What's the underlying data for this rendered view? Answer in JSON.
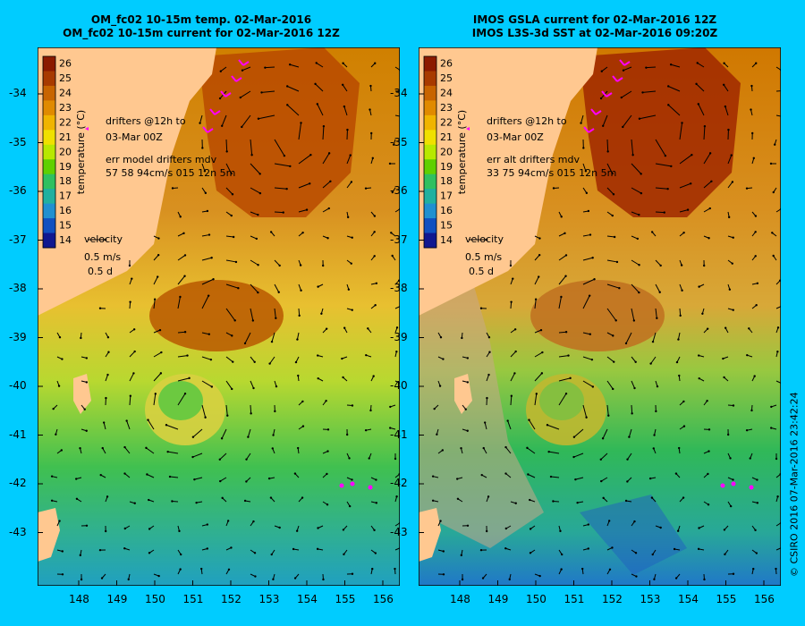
{
  "panels": [
    {
      "title1": "OM_fc02 10-15m temp. 02-Mar-2016",
      "title2": "OM_fc02 10-15m current for 02-Mar-2016 12Z",
      "drifters_l1": "drifters @12h to",
      "drifters_l2": "03-Mar 00Z",
      "err_l1": "err model drifters mdv",
      "err_l2": "57 58 94cm/s 015 12n 5m"
    },
    {
      "title1": "IMOS GSLA current for 02-Mar-2016 12Z",
      "title2": "IMOS L3S-3d SST at 02-Mar-2016 09:20Z",
      "drifters_l1": "drifters @12h to",
      "drifters_l2": "03-Mar 00Z",
      "err_l1": "err alt drifters mdv",
      "err_l2": "33 75 94cm/s 015 12n 5m"
    }
  ],
  "colorbar": {
    "label": "temperature (°C)",
    "ticks": [
      "26",
      "25",
      "24",
      "23",
      "22",
      "21",
      "20",
      "19",
      "18",
      "17",
      "16",
      "15",
      "14"
    ],
    "colors": [
      "#8b1a00",
      "#a83a00",
      "#c86400",
      "#e08a00",
      "#f0b400",
      "#f0e000",
      "#b8e800",
      "#60d000",
      "#30c060",
      "#20b0a0",
      "#2090d0",
      "#1050c0",
      "#101890"
    ]
  },
  "velocity": {
    "label": "velocity",
    "speed": "0.5 m/s",
    "duration": "0.5 d"
  },
  "lat_ticks": [
    "-34",
    "-35",
    "-36",
    "-37",
    "-38",
    "-39",
    "-40",
    "-41",
    "-42",
    "-43"
  ],
  "lon_ticks": [
    "148",
    "149",
    "150",
    "151",
    "152",
    "153",
    "154",
    "155",
    "156"
  ],
  "credit": "© CSIRO 2016   07-Mar-2016 23:42:24"
}
